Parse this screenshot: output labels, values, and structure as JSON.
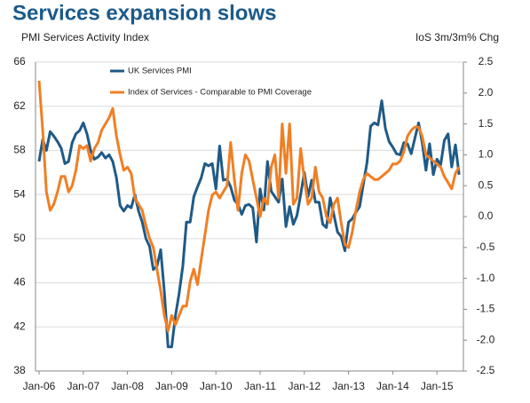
{
  "chart_data": {
    "type": "line",
    "title": "Services expansion slows",
    "y_label": "PMI Services Activity Index",
    "y2_label": "IoS 3m/3m% Chg",
    "categories": [
      "Jan-06",
      null,
      null,
      null,
      null,
      null,
      null,
      null,
      null,
      null,
      null,
      null,
      "Jan-07",
      null,
      null,
      null,
      null,
      null,
      null,
      null,
      null,
      null,
      null,
      null,
      "Jan-08",
      null,
      null,
      null,
      null,
      null,
      null,
      null,
      null,
      null,
      null,
      null,
      "Jan-09",
      null,
      null,
      null,
      null,
      null,
      null,
      null,
      null,
      null,
      null,
      null,
      "Jan-10",
      null,
      null,
      null,
      null,
      null,
      null,
      null,
      null,
      null,
      null,
      null,
      "Jan-11",
      null,
      null,
      null,
      null,
      null,
      null,
      null,
      null,
      null,
      null,
      null,
      "Jan-12",
      null,
      null,
      null,
      null,
      null,
      null,
      null,
      null,
      null,
      null,
      null,
      "Jan-13",
      null,
      null,
      null,
      null,
      null,
      null,
      null,
      null,
      null,
      null,
      null,
      "Jan-14",
      null,
      null,
      null,
      null,
      null,
      null,
      null,
      null,
      null,
      null,
      null,
      "Jan-15",
      null,
      null,
      null,
      null,
      null,
      null
    ],
    "series": [
      {
        "name": "UK Services PMI",
        "color": "#1f5a87",
        "values": [
          57,
          59,
          58,
          59.7,
          59.3,
          58.8,
          58.2,
          56.8,
          57,
          58.7,
          59.5,
          59.8,
          60.5,
          59.5,
          58,
          57.2,
          57.4,
          57.8,
          57.3,
          57.6,
          57,
          55.5,
          53,
          52.5,
          53,
          52.8,
          54,
          52.5,
          51.5,
          50,
          49.3,
          47.2,
          47.5,
          49,
          45.2,
          40.2,
          40.2,
          43,
          45,
          47.5,
          51.5,
          51.5,
          53.8,
          54.7,
          55.5,
          56.8,
          56.6,
          56.8,
          54.5,
          58.4,
          55.3,
          55.4,
          54.7,
          53.5,
          53.1,
          52.2,
          53,
          53.1,
          52.8,
          49.7,
          54.5,
          52.6,
          57,
          54.3,
          53.8,
          53.3,
          55.4,
          51.1,
          52.9,
          51.3,
          52.1,
          54,
          56,
          53.8,
          55.3,
          53.3,
          53.3,
          51.3,
          51,
          53.7,
          52.2,
          50.6,
          50.2,
          48.9,
          51.5,
          51.8,
          52.4,
          52.9,
          54.9,
          56.9,
          60.2,
          60.5,
          60.3,
          62.5,
          60,
          58.8,
          58.3,
          57.7,
          57.6,
          58.7,
          58.6,
          57.7,
          59.1,
          60.5,
          58.7,
          56.2,
          58.6,
          55.8,
          57.2,
          56.7,
          58.9,
          59.5,
          56.5,
          58.5,
          55.8
        ]
      },
      {
        "name": "Index of Services - Comparable to PMI Coverage",
        "color": "#f07f24",
        "axis": "y2",
        "values": [
          2.2,
          1.4,
          0.4,
          0.1,
          0.2,
          0.4,
          0.65,
          0.65,
          0.4,
          0.5,
          0.75,
          1.15,
          1.1,
          1.15,
          0.9,
          1.1,
          1.2,
          1.4,
          1.5,
          1.6,
          1.75,
          1.3,
          1.0,
          0.75,
          0.8,
          0.7,
          0.3,
          0.2,
          0.1,
          -0.15,
          -0.35,
          -0.5,
          -0.85,
          -1.2,
          -1.6,
          -1.85,
          -1.6,
          -1.75,
          -1.6,
          -1.45,
          -1.45,
          -1.05,
          -0.85,
          -1.1,
          -0.7,
          -0.3,
          0.1,
          0.35,
          0.4,
          0.3,
          0.4,
          0.5,
          1.2,
          0.6,
          0.1,
          0.7,
          1.0,
          0.9,
          0.6,
          0.3,
          0.0,
          0.3,
          0.2,
          0.8,
          1.0,
          0.3,
          1.5,
          0.7,
          1.5,
          0.2,
          0.3,
          1.1,
          0.6,
          0.2,
          0.3,
          0.8,
          0.4,
          0.3,
          0.0,
          -0.1,
          0.2,
          0.3,
          -0.1,
          -0.45,
          -0.5,
          -0.25,
          0.1,
          0.4,
          0.6,
          0.7,
          0.65,
          0.6,
          0.6,
          0.65,
          0.7,
          0.75,
          0.85,
          0.85,
          0.9,
          1.05,
          1.3,
          1.4,
          1.45,
          1.45,
          1.3,
          1.0,
          0.95,
          0.9,
          0.85,
          0.8,
          0.65,
          0.55,
          0.45,
          0.7,
          0.8
        ]
      }
    ],
    "ylim": [
      38,
      66
    ],
    "yticks": [
      38,
      42,
      46,
      50,
      54,
      58,
      62,
      66
    ],
    "y2lim": [
      -2.5,
      2.5
    ],
    "y2ticks": [
      -2.5,
      {
        "value": -2,
        "label": "-2.0"
      },
      -1.5,
      {
        "value": -1,
        "label": "-1.0"
      },
      -0.5,
      {
        "value": 0,
        "label": "0.0"
      },
      0.5,
      {
        "value": 1,
        "label": "1.0"
      },
      1.5,
      {
        "value": 2,
        "label": "2.0"
      },
      2.5
    ],
    "grid": true,
    "legend": "top-left"
  }
}
